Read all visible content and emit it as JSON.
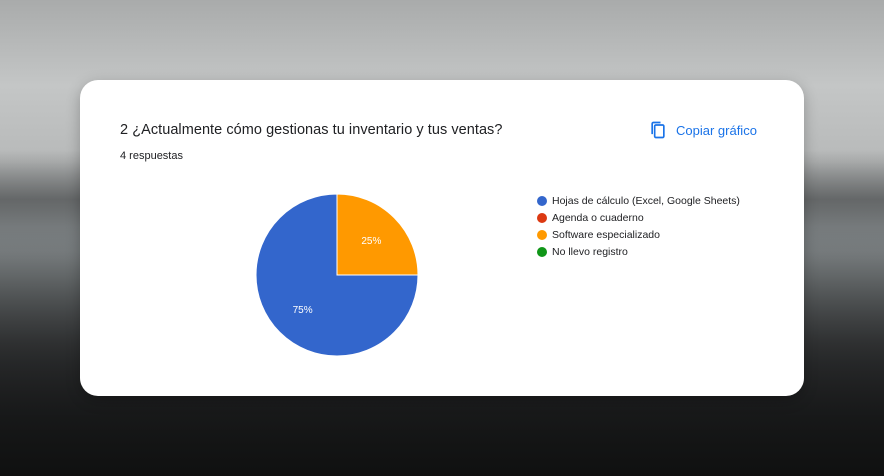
{
  "card": {
    "title": "2 ¿Actualmente cómo gestionas tu inventario y tus ventas?",
    "responses": "4 respuestas",
    "copy_label": "Copiar gráfico",
    "copy_icon": "copy-icon"
  },
  "colors": {
    "accent": "#1a73e8"
  },
  "chart_data": {
    "type": "pie",
    "title": "",
    "labels": [
      "Hojas de cálculo (Excel, Google Sheets)",
      "Agenda o cuaderno",
      "Software especializado",
      "No llevo registro"
    ],
    "values": [
      75,
      0,
      25,
      0
    ],
    "slice_labels": [
      "75%",
      "",
      "25%",
      ""
    ],
    "colors": [
      "#3366cc",
      "#dc3912",
      "#ff9900",
      "#109618"
    ],
    "legend_position": "right"
  }
}
